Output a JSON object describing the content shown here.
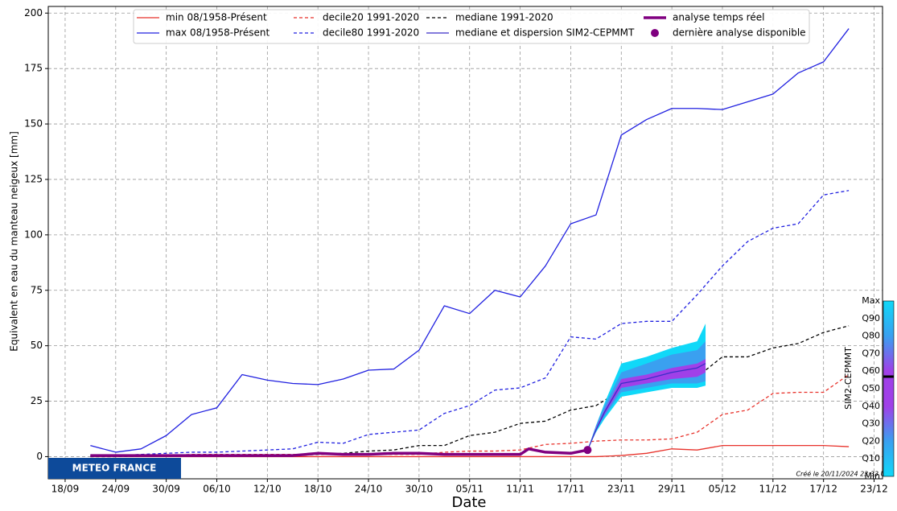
{
  "chart_data": {
    "type": "line",
    "ylabel": "Equivalent en eau du manteau neigeux  [mm]",
    "xlabel": "Date",
    "ylim": [
      -10,
      203
    ],
    "yticks": [
      0,
      25,
      50,
      75,
      100,
      125,
      150,
      175,
      200
    ],
    "xlim": [
      "16/09",
      "24/12"
    ],
    "xticks": [
      "18/09",
      "24/09",
      "30/09",
      "06/10",
      "12/10",
      "18/10",
      "24/10",
      "30/10",
      "05/11",
      "11/11",
      "17/11",
      "23/11",
      "29/11",
      "05/12",
      "11/12",
      "17/12",
      "23/12"
    ],
    "grid": true,
    "x": [
      "21/09",
      "24/09",
      "27/09",
      "30/09",
      "03/10",
      "06/10",
      "09/10",
      "12/10",
      "15/10",
      "18/10",
      "21/10",
      "24/10",
      "27/10",
      "30/10",
      "02/11",
      "05/11",
      "08/11",
      "11/11",
      "14/11",
      "17/11",
      "20/11",
      "23/11",
      "26/11",
      "29/11",
      "02/12",
      "05/12",
      "08/12",
      "11/12",
      "14/12",
      "17/12",
      "20/12"
    ],
    "series": [
      {
        "name": "min 08/1958-Présent",
        "color": "#e8322b",
        "values": [
          0,
          0,
          0,
          0,
          0,
          0,
          0,
          0,
          0,
          0,
          0,
          0,
          0,
          0,
          0,
          0,
          0,
          0,
          0,
          0,
          0,
          0.5,
          1.5,
          3.5,
          3,
          5,
          5,
          5,
          5,
          5,
          4.5
        ]
      },
      {
        "name": "max 08/1958-Présent",
        "color": "#2020e0",
        "values": [
          5,
          2,
          3.5,
          9.5,
          19,
          22,
          37,
          34.5,
          33,
          32.5,
          35,
          39,
          39.5,
          48,
          68,
          64.5,
          75,
          72,
          86,
          105,
          109,
          145,
          152,
          157,
          157,
          156.5,
          160,
          163.5,
          173,
          178,
          193
        ]
      },
      {
        "name": "decile20 1991-2020",
        "color": "#e8322b",
        "dashed": true,
        "values": [
          0.5,
          0.5,
          0.5,
          0.5,
          1,
          1,
          1,
          1,
          1,
          1,
          1,
          1,
          1,
          1,
          2,
          2.5,
          2.5,
          3,
          5.5,
          6,
          7,
          7.5,
          7.5,
          8,
          11,
          19,
          21,
          28.5,
          29,
          29,
          37
        ]
      },
      {
        "name": "decile80 1991-2020",
        "color": "#2020e0",
        "dashed": true,
        "values": [
          0.5,
          0.5,
          1,
          1.5,
          2,
          2,
          2.5,
          3,
          3.5,
          6.5,
          6,
          10,
          11,
          12,
          19.5,
          23,
          30,
          31,
          35.5,
          54,
          53,
          60,
          61,
          61,
          73,
          86,
          97,
          103,
          105,
          118,
          120
        ]
      },
      {
        "name": "mediane 1991-2020",
        "color": "#000000",
        "dashed": true,
        "values": [
          0,
          0,
          0.2,
          0.5,
          0.5,
          0.5,
          0.5,
          0.5,
          0.5,
          1,
          1.5,
          2.5,
          3,
          5,
          5,
          9.5,
          11,
          15,
          16,
          21,
          23,
          30,
          31,
          34,
          36,
          45,
          45,
          49,
          51,
          56,
          59
        ]
      },
      {
        "name": "mediane et dispersion SIM2-CEPMMT",
        "color": "#3a2fc8",
        "x": [
          "19/11",
          "20/11",
          "21/11",
          "23/11",
          "26/11",
          "29/11",
          "02/12",
          "03/12"
        ],
        "values": [
          3,
          12,
          20,
          33,
          35,
          38,
          40,
          42
        ],
        "band_min": [
          3,
          11,
          17,
          27,
          29,
          31,
          31,
          32
        ],
        "band_max": [
          3,
          14,
          24,
          42,
          45,
          49,
          52,
          60
        ],
        "band_q10": [
          3,
          12,
          18,
          29,
          31,
          33,
          33,
          34
        ],
        "band_q90": [
          3,
          14,
          23,
          38,
          42,
          46,
          48,
          52
        ],
        "band_q30": [
          3,
          12,
          19,
          31,
          33,
          35,
          36,
          38
        ],
        "band_q70": [
          3,
          13,
          21,
          35,
          37,
          40,
          42,
          44
        ]
      },
      {
        "name": "analyse temps réel",
        "color": "#800080",
        "linewidth": 3.5,
        "x": [
          "21/09",
          "24/09",
          "27/09",
          "30/09",
          "03/10",
          "06/10",
          "09/10",
          "12/10",
          "15/10",
          "18/10",
          "21/10",
          "24/10",
          "27/10",
          "30/10",
          "02/11",
          "05/11",
          "08/11",
          "11/11",
          "12/11",
          "14/11",
          "17/11",
          "19/11"
        ],
        "values": [
          0.5,
          0.5,
          0.5,
          0.5,
          0.5,
          0.5,
          0.5,
          0.5,
          0.5,
          1.5,
          1,
          1,
          1.5,
          1.5,
          1,
          1,
          1,
          1,
          3.5,
          2,
          1.5,
          3
        ]
      }
    ],
    "point": {
      "name": "dernière analyse disponible",
      "color": "#800080",
      "x": "19/11",
      "value": 3
    },
    "colorbar": {
      "label": "SIM2-CEPMMT",
      "labels": [
        "Max",
        "Q90",
        "Q80",
        "Q70",
        "Q60",
        "Q50",
        "Q40",
        "Q30",
        "Q20",
        "Q10",
        "Min"
      ]
    },
    "logo": "METEO FRANCE",
    "created": "Créé le 20/11/2024 23:33 UTC"
  }
}
